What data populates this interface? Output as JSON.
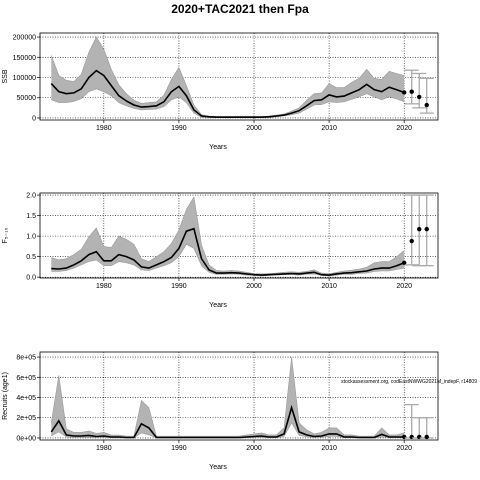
{
  "title": "2020+TAC2021 then Fpa",
  "watermark": "stockassessment.org, codEastNWWG2021M_indepF, r14809",
  "chart_data": [
    {
      "type": "area",
      "xlabel": "Years",
      "ylabel": "SSB",
      "xlim": [
        1971.5,
        2024.5
      ],
      "ylim": [
        -5000,
        210000
      ],
      "xticks": [
        1980,
        1990,
        2000,
        2010,
        2020
      ],
      "yticks": [
        0,
        50000,
        100000,
        150000,
        200000
      ],
      "yticklabels": [
        "0",
        "50000",
        "100000",
        "150000",
        "200000"
      ],
      "grid": true,
      "x": [
        1973,
        1974,
        1975,
        1976,
        1977,
        1978,
        1979,
        1980,
        1981,
        1982,
        1983,
        1984,
        1985,
        1986,
        1987,
        1988,
        1989,
        1990,
        1991,
        1992,
        1993,
        1994,
        1995,
        1996,
        1997,
        1998,
        1999,
        2000,
        2001,
        2002,
        2003,
        2004,
        2005,
        2006,
        2007,
        2008,
        2009,
        2010,
        2011,
        2012,
        2013,
        2014,
        2015,
        2016,
        2017,
        2018,
        2019,
        2020
      ],
      "estimate": [
        85000,
        65000,
        60000,
        62000,
        72000,
        100000,
        117000,
        105000,
        80000,
        55000,
        42000,
        32000,
        27000,
        28000,
        30000,
        40000,
        65000,
        78000,
        55000,
        20000,
        5000,
        3000,
        2000,
        2000,
        2000,
        2000,
        2000,
        2000,
        2000,
        3000,
        5000,
        7000,
        12000,
        18000,
        30000,
        43000,
        45000,
        57000,
        52000,
        54000,
        62000,
        70000,
        83000,
        70000,
        65000,
        76000,
        70000,
        63000
      ],
      "lower": [
        45000,
        38000,
        38000,
        41000,
        48000,
        65000,
        72000,
        65000,
        55000,
        38000,
        30000,
        24000,
        20000,
        21000,
        22000,
        28000,
        45000,
        52000,
        38000,
        12000,
        2000,
        1000,
        1000,
        1000,
        1000,
        1000,
        1000,
        1000,
        1000,
        1500,
        3000,
        5000,
        8000,
        12000,
        22000,
        32000,
        33000,
        40000,
        38000,
        40000,
        46000,
        52000,
        60000,
        52000,
        45000,
        52000,
        47000,
        40000
      ],
      "upper": [
        155000,
        105000,
        93000,
        90000,
        108000,
        162000,
        200000,
        170000,
        120000,
        82000,
        60000,
        44000,
        36000,
        38000,
        40000,
        56000,
        95000,
        125000,
        80000,
        32000,
        8000,
        5000,
        4000,
        4000,
        4000,
        4000,
        4000,
        4000,
        4000,
        5000,
        7000,
        10000,
        17000,
        25000,
        44000,
        60000,
        62000,
        85000,
        75000,
        75000,
        88000,
        98000,
        120000,
        98000,
        95000,
        115000,
        110000,
        105000
      ],
      "forecast": [
        {
          "x": 2021,
          "median": 65000,
          "lower": 35000,
          "upper": 118000
        },
        {
          "x": 2022,
          "median": 52000,
          "lower": 25000,
          "upper": 110000
        },
        {
          "x": 2023,
          "median": 32000,
          "lower": 12000,
          "upper": 98000
        }
      ]
    },
    {
      "type": "area",
      "xlabel": "Years",
      "ylabel": "F₅₋₁₀",
      "xlim": [
        1971.5,
        2024.5
      ],
      "ylim": [
        -0.02,
        2.05
      ],
      "xticks": [
        1980,
        1990,
        2000,
        2010,
        2020
      ],
      "yticks": [
        0,
        0.5,
        1,
        1.5,
        2
      ],
      "yticklabels": [
        "0.0",
        "0.5",
        "1.0",
        "1.5",
        "2.0"
      ],
      "grid": true,
      "x": [
        1973,
        1974,
        1975,
        1976,
        1977,
        1978,
        1979,
        1980,
        1981,
        1982,
        1983,
        1984,
        1985,
        1986,
        1987,
        1988,
        1989,
        1990,
        1991,
        1992,
        1993,
        1994,
        1995,
        1996,
        1997,
        1998,
        1999,
        2000,
        2001,
        2002,
        2003,
        2004,
        2005,
        2006,
        2007,
        2008,
        2009,
        2010,
        2011,
        2012,
        2013,
        2014,
        2015,
        2016,
        2017,
        2018,
        2019,
        2020
      ],
      "estimate": [
        0.21,
        0.2,
        0.22,
        0.3,
        0.4,
        0.55,
        0.62,
        0.4,
        0.4,
        0.55,
        0.5,
        0.42,
        0.25,
        0.22,
        0.3,
        0.38,
        0.48,
        0.7,
        1.12,
        1.18,
        0.45,
        0.18,
        0.1,
        0.1,
        0.11,
        0.1,
        0.08,
        0.06,
        0.05,
        0.06,
        0.07,
        0.08,
        0.09,
        0.08,
        0.1,
        0.12,
        0.06,
        0.05,
        0.08,
        0.1,
        0.11,
        0.13,
        0.15,
        0.2,
        0.22,
        0.22,
        0.28,
        0.35
      ],
      "lower": [
        0.14,
        0.14,
        0.16,
        0.22,
        0.3,
        0.38,
        0.42,
        0.28,
        0.28,
        0.38,
        0.35,
        0.3,
        0.18,
        0.16,
        0.22,
        0.28,
        0.35,
        0.5,
        0.8,
        0.7,
        0.28,
        0.12,
        0.07,
        0.07,
        0.08,
        0.07,
        0.05,
        0.04,
        0.03,
        0.04,
        0.05,
        0.06,
        0.06,
        0.05,
        0.07,
        0.08,
        0.04,
        0.03,
        0.05,
        0.07,
        0.07,
        0.09,
        0.1,
        0.14,
        0.15,
        0.15,
        0.19,
        0.22
      ],
      "upper": [
        0.48,
        0.42,
        0.45,
        0.55,
        0.68,
        0.98,
        1.2,
        0.75,
        0.72,
        1.0,
        0.92,
        0.8,
        0.45,
        0.38,
        0.5,
        0.62,
        0.82,
        1.15,
        1.65,
        1.95,
        0.78,
        0.3,
        0.16,
        0.15,
        0.16,
        0.15,
        0.12,
        0.09,
        0.08,
        0.09,
        0.1,
        0.12,
        0.13,
        0.12,
        0.14,
        0.18,
        0.1,
        0.08,
        0.12,
        0.15,
        0.17,
        0.2,
        0.24,
        0.35,
        0.38,
        0.38,
        0.5,
        0.65
      ],
      "forecast": [
        {
          "x": 2021,
          "median": 0.88,
          "lower": 0.3,
          "upper": 2.0
        },
        {
          "x": 2022,
          "median": 1.17,
          "lower": 0.28,
          "upper": 2.0
        },
        {
          "x": 2023,
          "median": 1.17,
          "lower": 0.28,
          "upper": 2.0
        }
      ]
    },
    {
      "type": "area",
      "xlabel": "Years",
      "ylabel": "Recruits (age1)",
      "xlim": [
        1971.5,
        2024.5
      ],
      "ylim": [
        -20000,
        850000
      ],
      "xticks": [
        1980,
        1990,
        2000,
        2010,
        2020
      ],
      "yticks": [
        0,
        200000,
        400000,
        600000,
        800000
      ],
      "yticklabels": [
        "0e+00",
        "2e+05",
        "4e+05",
        "6e+05",
        "8e+05"
      ],
      "grid": true,
      "x": [
        1973,
        1974,
        1975,
        1976,
        1977,
        1978,
        1979,
        1980,
        1981,
        1982,
        1983,
        1984,
        1985,
        1986,
        1987,
        1988,
        1989,
        1990,
        1991,
        1992,
        1993,
        1994,
        1995,
        1996,
        1997,
        1998,
        1999,
        2000,
        2001,
        2002,
        2003,
        2004,
        2005,
        2006,
        2007,
        2008,
        2009,
        2010,
        2011,
        2012,
        2013,
        2014,
        2015,
        2016,
        2017,
        2018,
        2019,
        2020
      ],
      "estimate": [
        60000,
        170000,
        30000,
        20000,
        20000,
        25000,
        15000,
        20000,
        10000,
        10000,
        5000,
        5000,
        140000,
        100000,
        5000,
        5000,
        5000,
        5000,
        5000,
        5000,
        5000,
        5000,
        5000,
        5000,
        5000,
        5000,
        10000,
        15000,
        20000,
        10000,
        10000,
        40000,
        300000,
        60000,
        30000,
        15000,
        20000,
        40000,
        40000,
        10000,
        10000,
        5000,
        5000,
        5000,
        35000,
        10000,
        10000,
        10000
      ],
      "lower": [
        20000,
        60000,
        10000,
        5000,
        5000,
        5000,
        5000,
        5000,
        2000,
        2000,
        1000,
        1000,
        50000,
        30000,
        1000,
        1000,
        1000,
        1000,
        1000,
        1000,
        1000,
        1000,
        1000,
        1000,
        1000,
        1000,
        3000,
        5000,
        5000,
        3000,
        3000,
        15000,
        150000,
        25000,
        12000,
        5000,
        8000,
        15000,
        15000,
        3000,
        3000,
        1000,
        1000,
        1000,
        10000,
        3000,
        3000,
        2000
      ],
      "upper": [
        150000,
        620000,
        90000,
        55000,
        55000,
        70000,
        45000,
        55000,
        30000,
        28000,
        18000,
        18000,
        370000,
        300000,
        18000,
        18000,
        18000,
        18000,
        18000,
        18000,
        18000,
        18000,
        18000,
        18000,
        18000,
        18000,
        30000,
        40000,
        50000,
        30000,
        30000,
        100000,
        800000,
        150000,
        80000,
        40000,
        55000,
        100000,
        100000,
        30000,
        30000,
        18000,
        18000,
        18000,
        100000,
        30000,
        30000,
        50000
      ],
      "forecast": [
        {
          "x": 2021,
          "median": 10000,
          "lower": 0,
          "upper": 330000
        },
        {
          "x": 2022,
          "median": 10000,
          "lower": 0,
          "upper": 200000
        },
        {
          "x": 2023,
          "median": 10000,
          "lower": 0,
          "upper": 200000
        }
      ]
    }
  ]
}
